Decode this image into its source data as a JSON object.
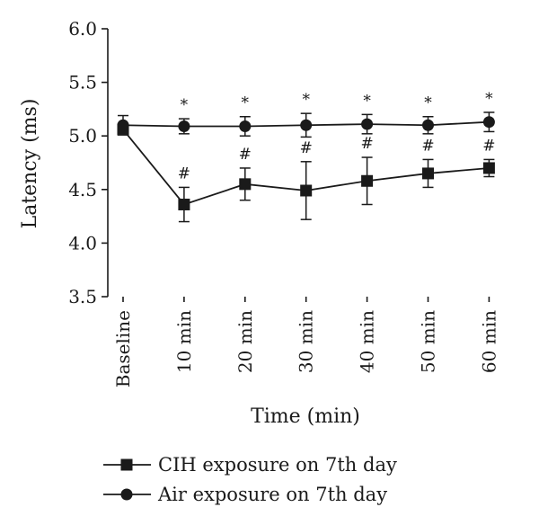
{
  "chart_data": {
    "type": "line",
    "title": "",
    "xlabel": "Time (min)",
    "ylabel": "Latency (ms)",
    "categories": [
      "Baseline",
      "10 min",
      "20 min",
      "30 min",
      "40 min",
      "50 min",
      "60 min"
    ],
    "ylim": [
      3.5,
      6.0
    ],
    "yticks": [
      "3.5",
      "4.0",
      "4.5",
      "5.0",
      "5.5",
      "6.0"
    ],
    "grid": false,
    "legend_position": "bottom",
    "series": [
      {
        "name": "CIH exposure on 7th day",
        "marker": "square",
        "color": "#1a1a1a",
        "values": [
          5.06,
          4.36,
          4.55,
          4.49,
          4.58,
          4.65,
          4.7
        ],
        "error": [
          0.05,
          0.16,
          0.15,
          0.27,
          0.22,
          0.13,
          0.08
        ],
        "annotations": [
          "",
          "#",
          "#",
          "#",
          "#",
          "#",
          "#"
        ]
      },
      {
        "name": "Air exposure on 7th day",
        "marker": "circle",
        "color": "#1a1a1a",
        "values": [
          5.1,
          5.09,
          5.09,
          5.1,
          5.11,
          5.1,
          5.13
        ],
        "error": [
          0.09,
          0.07,
          0.09,
          0.11,
          0.09,
          0.08,
          0.09
        ],
        "annotations": [
          "",
          "*",
          "*",
          "*",
          "*",
          "*",
          "*"
        ]
      }
    ]
  }
}
